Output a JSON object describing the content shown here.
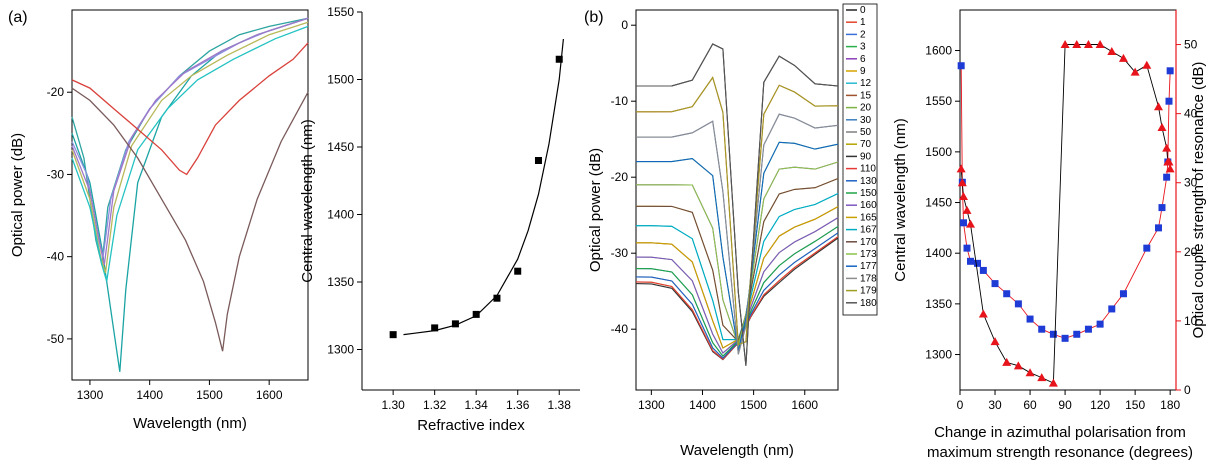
{
  "chart_data": [
    {
      "id": "a-spectra",
      "panel_label": "(a)",
      "type": "line",
      "xlabel": "Wavelength (nm)",
      "ylabel": "Optical power (dB)",
      "xlim": [
        1270,
        1665
      ],
      "ylim": [
        -55,
        -10
      ],
      "xticks": [
        1300,
        1400,
        1500,
        1600
      ],
      "yticks": [
        -50,
        -40,
        -30,
        -20
      ],
      "colors": [
        "#2ca4a0",
        "#1aa3a3",
        "#8b8fe0",
        "#a078c8",
        "#b8b85a",
        "#24c2c2",
        "#d9413b",
        "#7a5a5a"
      ],
      "series": [
        {
          "values": [
            [
              1270,
              -23
            ],
            [
              1290,
              -28
            ],
            [
              1310,
              -38
            ],
            [
              1320,
              -41
            ],
            [
              1330,
              -34
            ],
            [
              1360,
              -27
            ],
            [
              1400,
              -22
            ],
            [
              1450,
              -18
            ],
            [
              1500,
              -15
            ],
            [
              1550,
              -13
            ],
            [
              1600,
              -12
            ],
            [
              1665,
              -11
            ]
          ]
        },
        {
          "values": [
            [
              1270,
              -25
            ],
            [
              1300,
              -31
            ],
            [
              1320,
              -39
            ],
            [
              1340,
              -49
            ],
            [
              1350,
              -54
            ],
            [
              1360,
              -44
            ],
            [
              1380,
              -31
            ],
            [
              1420,
              -23
            ],
            [
              1470,
              -18
            ],
            [
              1520,
              -15
            ],
            [
              1580,
              -13
            ],
            [
              1665,
              -11
            ]
          ]
        },
        {
          "values": [
            [
              1270,
              -26
            ],
            [
              1295,
              -30
            ],
            [
              1315,
              -38
            ],
            [
              1322,
              -40
            ],
            [
              1335,
              -33
            ],
            [
              1365,
              -26
            ],
            [
              1400,
              -22
            ],
            [
              1450,
              -18
            ],
            [
              1500,
              -16
            ],
            [
              1550,
              -14
            ],
            [
              1600,
              -12.5
            ],
            [
              1665,
              -11
            ]
          ]
        },
        {
          "values": [
            [
              1270,
              -26.5
            ],
            [
              1300,
              -32
            ],
            [
              1318,
              -39
            ],
            [
              1324,
              -41
            ],
            [
              1340,
              -32
            ],
            [
              1370,
              -25.5
            ],
            [
              1410,
              -21
            ],
            [
              1460,
              -17.5
            ],
            [
              1520,
              -15
            ],
            [
              1580,
              -13
            ],
            [
              1665,
              -11
            ]
          ]
        },
        {
          "values": [
            [
              1270,
              -27
            ],
            [
              1300,
              -33
            ],
            [
              1318,
              -40
            ],
            [
              1326,
              -42
            ],
            [
              1340,
              -34
            ],
            [
              1370,
              -26.5
            ],
            [
              1420,
              -21
            ],
            [
              1470,
              -18
            ],
            [
              1530,
              -15.5
            ],
            [
              1600,
              -13
            ],
            [
              1665,
              -11.5
            ]
          ]
        },
        {
          "values": [
            [
              1270,
              -28
            ],
            [
              1300,
              -34
            ],
            [
              1320,
              -41
            ],
            [
              1328,
              -43
            ],
            [
              1345,
              -35
            ],
            [
              1380,
              -27
            ],
            [
              1430,
              -22
            ],
            [
              1480,
              -18.5
            ],
            [
              1540,
              -16
            ],
            [
              1610,
              -13.5
            ],
            [
              1665,
              -12
            ]
          ]
        },
        {
          "values": [
            [
              1270,
              -18.5
            ],
            [
              1300,
              -19.5
            ],
            [
              1340,
              -22
            ],
            [
              1380,
              -24.5
            ],
            [
              1420,
              -27
            ],
            [
              1450,
              -29.5
            ],
            [
              1462,
              -30
            ],
            [
              1480,
              -28
            ],
            [
              1510,
              -24
            ],
            [
              1550,
              -21
            ],
            [
              1600,
              -18
            ],
            [
              1640,
              -16
            ],
            [
              1665,
              -14
            ]
          ]
        },
        {
          "values": [
            [
              1270,
              -19.5
            ],
            [
              1300,
              -21
            ],
            [
              1340,
              -24
            ],
            [
              1380,
              -28
            ],
            [
              1420,
              -33
            ],
            [
              1460,
              -38
            ],
            [
              1490,
              -43
            ],
            [
              1510,
              -48
            ],
            [
              1522,
              -51.5
            ],
            [
              1530,
              -47
            ],
            [
              1550,
              -40
            ],
            [
              1580,
              -33
            ],
            [
              1620,
              -26
            ],
            [
              1650,
              -22
            ],
            [
              1665,
              -20
            ]
          ]
        }
      ]
    },
    {
      "id": "a-index",
      "type": "scatter",
      "xlabel": "Refractive index",
      "ylabel": "Central wavelength (nm)",
      "xlim": [
        1.285,
        1.39
      ],
      "ylim": [
        1270,
        1550
      ],
      "xticks": [
        1.3,
        1.32,
        1.34,
        1.36,
        1.38
      ],
      "xtick_labels": [
        "1.30",
        "1.32",
        "1.34",
        "1.36",
        "1.38"
      ],
      "yticks": [
        1300,
        1350,
        1400,
        1450,
        1500,
        1550
      ],
      "x": [
        1.3,
        1.32,
        1.33,
        1.34,
        1.35,
        1.36,
        1.37,
        1.38
      ],
      "y": [
        1311,
        1316,
        1319,
        1326,
        1338,
        1358,
        1440,
        1515
      ],
      "fit": {
        "x": [
          1.305,
          1.31,
          1.32,
          1.33,
          1.34,
          1.35,
          1.36,
          1.365,
          1.37,
          1.375,
          1.38,
          1.382
        ],
        "y": [
          1311,
          1312,
          1314,
          1318,
          1325,
          1340,
          1367,
          1388,
          1415,
          1452,
          1500,
          1530
        ]
      }
    },
    {
      "id": "b-spectra",
      "panel_label": "(b)",
      "type": "line",
      "xlabel": "Wavelength (nm)",
      "ylabel": "Optical power (dB)",
      "xlim": [
        1270,
        1665
      ],
      "ylim": [
        -48,
        2
      ],
      "xticks": [
        1300,
        1400,
        1500,
        1600
      ],
      "yticks": [
        -40,
        -30,
        -20,
        -10,
        0
      ],
      "legend": [
        "0",
        "1",
        "2",
        "3",
        "6",
        "9",
        "12",
        "15",
        "20",
        "30",
        "50",
        "70",
        "90",
        "110",
        "130",
        "150",
        "160",
        "165",
        "167",
        "170",
        "173",
        "177",
        "178",
        "179",
        "180"
      ],
      "legend_colors": [
        "#222222",
        "#e0452b",
        "#3a6fd8",
        "#2bb04a",
        "#8a3fb8",
        "#d9a300",
        "#27bcd0",
        "#a0522d",
        "#7cb342",
        "#3a7fc0",
        "#7f7f7f",
        "#b5a300",
        "#333333",
        "#e53935",
        "#1e63c4",
        "#1fa347",
        "#7e57c2",
        "#c9a100",
        "#00acc1",
        "#6d4c41",
        "#8bc34a",
        "#1565c0",
        "#8d8d8d",
        "#9e9d24",
        "#555555"
      ]
    },
    {
      "id": "b-polarisation",
      "type": "scatter",
      "xlabel": "Change in azimuthal polarisation from maximum strength resonance (degrees)",
      "ylabel": "Central wavelength (nm)",
      "ylabel_right": "Optical couple strength of resonance (dB)",
      "xlim": [
        0,
        185
      ],
      "ylim": [
        1265,
        1640
      ],
      "ylim_right": [
        0,
        55
      ],
      "xticks": [
        0,
        30,
        60,
        90,
        120,
        150,
        180
      ],
      "yticks": [
        1300,
        1350,
        1400,
        1450,
        1500,
        1550,
        1600
      ],
      "yticks_right": [
        0,
        10,
        20,
        30,
        40,
        50
      ],
      "series": [
        {
          "axis": "left",
          "color": "#1f3bd6",
          "marker": "square",
          "x": [
            1,
            2,
            3,
            6,
            9,
            15,
            20,
            30,
            40,
            50,
            60,
            70,
            80,
            90,
            100,
            110,
            120,
            130,
            140,
            160,
            170,
            173,
            177,
            178,
            179,
            180
          ],
          "y": [
            1585,
            1470,
            1430,
            1405,
            1392,
            1390,
            1383,
            1370,
            1360,
            1350,
            1335,
            1325,
            1320,
            1316,
            1320,
            1325,
            1330,
            1345,
            1360,
            1405,
            1425,
            1445,
            1475,
            1490,
            1550,
            1580
          ]
        },
        {
          "axis": "right",
          "color": "#e8141c",
          "marker": "triangle",
          "x": [
            1,
            2,
            3,
            6,
            9,
            20,
            30,
            40,
            50,
            60,
            70,
            80,
            90,
            100,
            110,
            120,
            130,
            140,
            150,
            160,
            170,
            173,
            177,
            178,
            179,
            180
          ],
          "y": [
            32,
            30,
            28,
            26,
            24,
            11,
            7,
            4,
            3.5,
            2.5,
            1.8,
            1.0,
            50,
            50,
            50,
            50,
            49,
            48,
            46,
            47,
            41,
            38,
            35,
            33,
            33,
            32
          ]
        }
      ]
    }
  ],
  "figure_text": {
    "b_xlabel_line1": "Change in azimuthal polarisation from",
    "b_xlabel_line2": "maximum strength resonance (degrees)"
  }
}
